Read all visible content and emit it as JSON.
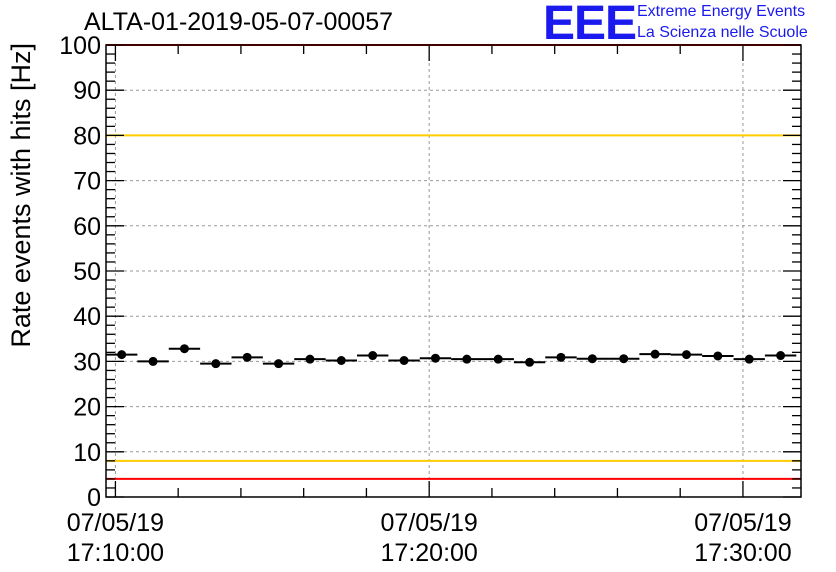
{
  "header": {
    "run_title": "ALTA-01-2019-05-07-00057",
    "logo_mark": "EEE",
    "logo_line1": "Extreme Energy Events",
    "logo_line2": "La Scienza nelle Scuole"
  },
  "colors": {
    "frame": "#000000",
    "grid": "#999999",
    "red_limit": "#ff0000",
    "yellow_limit": "#ffcc00",
    "marker": "#000000",
    "logo": "#1a1aee"
  },
  "chart_data": {
    "type": "scatter",
    "title": "ALTA-01-2019-05-07-00057",
    "xlabel": "",
    "ylabel": "Rate events with hits [Hz]",
    "ylim": [
      0,
      100
    ],
    "y_ticks": [
      0,
      10,
      20,
      30,
      40,
      50,
      60,
      70,
      80,
      90,
      100
    ],
    "x_unit": "minutes after 07/05/19 17:10:00",
    "xlim": [
      -0.3,
      21.85
    ],
    "x_major_ticks": [
      {
        "value": 0,
        "date": "07/05/19",
        "time": "17:10:00"
      },
      {
        "value": 10,
        "date": "07/05/19",
        "time": "17:20:00"
      },
      {
        "value": 20,
        "date": "07/05/19",
        "time": "17:30:00"
      }
    ],
    "x_minor_step": 2,
    "grid": true,
    "bin_width_min": 1,
    "horizontal_lines": [
      {
        "y": 100,
        "color": "#ff0000"
      },
      {
        "y": 80,
        "color": "#ffcc00"
      },
      {
        "y": 8,
        "color": "#ffcc00"
      },
      {
        "y": 4,
        "color": "#ff0000"
      }
    ],
    "series": [
      {
        "x": [
          0.2,
          1.2,
          2.2,
          3.2,
          4.2,
          5.2,
          6.2,
          7.2,
          8.2,
          9.2,
          10.2,
          11.2,
          12.2,
          13.2,
          14.2,
          15.2,
          16.2,
          17.2,
          18.2,
          19.2,
          20.2,
          21.2
        ],
        "y": [
          31.5,
          30.0,
          32.8,
          29.5,
          30.9,
          29.5,
          30.5,
          30.2,
          31.3,
          30.2,
          30.7,
          30.5,
          30.5,
          29.8,
          30.9,
          30.6,
          30.6,
          31.6,
          31.5,
          31.2,
          30.5,
          31.3
        ]
      }
    ]
  }
}
